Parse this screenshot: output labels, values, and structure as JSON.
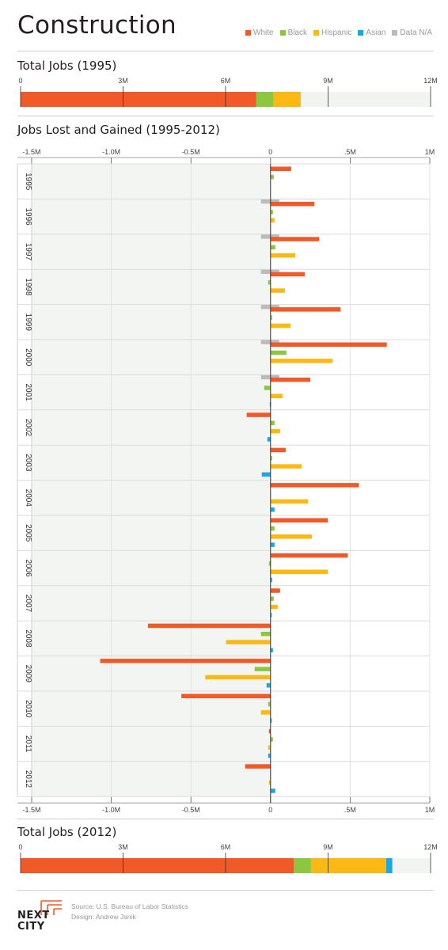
{
  "header": {
    "title": "Construction"
  },
  "legend": [
    {
      "label": "White",
      "color": "#f05a28"
    },
    {
      "label": "Black",
      "color": "#8dc63f"
    },
    {
      "label": "Hispanic",
      "color": "#fdb913"
    },
    {
      "label": "Asian",
      "color": "#1ba8e0"
    },
    {
      "label": "Data N/A",
      "color": "#bbbbbb"
    }
  ],
  "chart_data": [
    {
      "type": "bar",
      "orientation": "horizontal-stacked",
      "title": "Total Jobs (1995)",
      "xlim": [
        0,
        12000000
      ],
      "tick_labels": [
        "0",
        "3M",
        "6M",
        "9M",
        "12M"
      ],
      "series": [
        {
          "name": "White",
          "value": 6900000
        },
        {
          "name": "Black",
          "value": 500000
        },
        {
          "name": "Hispanic",
          "value": 800000
        }
      ]
    },
    {
      "type": "bar",
      "orientation": "horizontal-grouped",
      "title": "Jobs Lost and Gained (1995-2012)",
      "xlim": [
        -1500000,
        1000000
      ],
      "tick_labels": [
        "-1.5M",
        "-1.0M",
        "-0.5M",
        "0",
        ".5M",
        "1M"
      ],
      "categories": [
        "1995",
        "1996",
        "1997",
        "1998",
        "1999",
        "2000",
        "2001",
        "2002",
        "2003",
        "2004",
        "2005",
        "2006",
        "2007",
        "2008",
        "2009",
        "2010",
        "2011",
        "2012"
      ],
      "series": [
        {
          "name": "White",
          "values": [
            130000,
            275000,
            305000,
            215000,
            440000,
            730000,
            250000,
            -150000,
            95000,
            555000,
            360000,
            485000,
            60000,
            -770000,
            -1070000,
            -560000,
            -10000,
            -160000
          ]
        },
        {
          "name": "Black",
          "values": [
            20000,
            15000,
            30000,
            -15000,
            10000,
            100000,
            -40000,
            25000,
            10000,
            0,
            25000,
            -10000,
            20000,
            -60000,
            -100000,
            -15000,
            15000,
            0
          ]
        },
        {
          "name": "Hispanic",
          "values": [
            0,
            25000,
            155000,
            90000,
            125000,
            390000,
            75000,
            60000,
            195000,
            235000,
            260000,
            360000,
            45000,
            -280000,
            -410000,
            -60000,
            -15000,
            -10000
          ]
        },
        {
          "name": "Asian",
          "values": [
            0,
            0,
            0,
            0,
            0,
            0,
            -5000,
            -20000,
            -55000,
            25000,
            25000,
            10000,
            5000,
            15000,
            -25000,
            5000,
            -15000,
            30000
          ]
        },
        {
          "name": "Data N/A",
          "values": [
            55000,
            55000,
            55000,
            55000,
            55000,
            55000,
            0,
            0,
            0,
            0,
            0,
            0,
            0,
            0,
            0,
            0,
            0,
            0
          ],
          "neg_values": [
            -60000,
            -60000,
            -60000,
            -60000,
            -60000,
            -60000,
            0,
            0,
            0,
            0,
            0,
            0,
            0,
            0,
            0,
            0,
            0,
            0
          ]
        }
      ]
    },
    {
      "type": "bar",
      "orientation": "horizontal-stacked",
      "title": "Total Jobs (2012)",
      "xlim": [
        0,
        12000000
      ],
      "tick_labels": [
        "0",
        "3M",
        "6M",
        "9M",
        "12M"
      ],
      "series": [
        {
          "name": "White",
          "value": 8000000
        },
        {
          "name": "Black",
          "value": 500000
        },
        {
          "name": "Hispanic",
          "value": 2200000
        },
        {
          "name": "Asian",
          "value": 180000
        }
      ]
    }
  ],
  "footer": {
    "source": "Source: U.S. Bureau of Labor Statistics",
    "design": "Design: Andrew Janik",
    "logo_line1": "NEXT",
    "logo_line2": "CITY"
  }
}
